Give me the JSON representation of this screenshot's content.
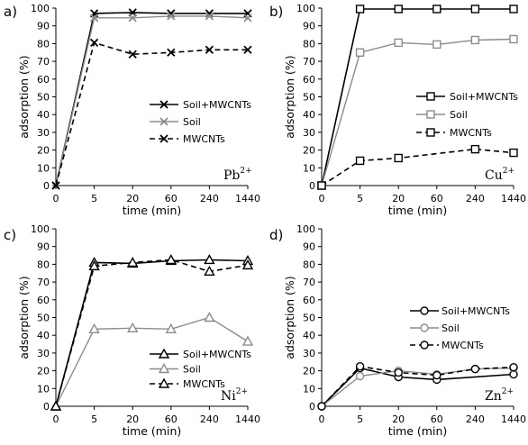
{
  "chart_data": [
    {
      "type": "line",
      "panel_label": "a)",
      "ion": "Pb",
      "ion_charge": "2+",
      "xlabel": "time (min)",
      "ylabel": "adsorption (%)",
      "categories": [
        "0",
        "5",
        "20",
        "60",
        "240",
        "1440"
      ],
      "ylim": [
        0,
        100
      ],
      "yticks": [
        0,
        10,
        20,
        30,
        40,
        50,
        60,
        70,
        80,
        90,
        100
      ],
      "marker": "x",
      "legend_position": "center-right",
      "series": [
        {
          "name": "Soil+MWCNTs",
          "style": "solid",
          "color": "#000000",
          "values": [
            0,
            97,
            97.5,
            97,
            97,
            97
          ]
        },
        {
          "name": "Soil",
          "style": "solid",
          "color": "#8c8c8c",
          "values": [
            0,
            94.5,
            94.5,
            95.5,
            95.5,
            94.5
          ]
        },
        {
          "name": "MWCNTs",
          "style": "dashed",
          "color": "#000000",
          "values": [
            0,
            80.5,
            74,
            75,
            76.5,
            76.5
          ]
        }
      ]
    },
    {
      "type": "line",
      "panel_label": "b)",
      "ion": "Cu",
      "ion_charge": "2+",
      "xlabel": "time (min)",
      "ylabel": "adsorption (%)",
      "categories": [
        "0",
        "5",
        "20",
        "60",
        "240",
        "1440"
      ],
      "ylim": [
        0,
        100
      ],
      "yticks": [
        0,
        10,
        20,
        30,
        40,
        50,
        60,
        70,
        80,
        90,
        100
      ],
      "marker": "square",
      "legend_position": "center-right",
      "series": [
        {
          "name": "Soil+MWCNTs",
          "style": "solid",
          "color": "#000000",
          "values": [
            0,
            99.5,
            99.5,
            99.5,
            99.5,
            99.5
          ]
        },
        {
          "name": "Soil",
          "style": "solid",
          "color": "#8c8c8c",
          "values": [
            0,
            75,
            80.5,
            79.5,
            82,
            82.5
          ]
        },
        {
          "name": "MWCNTs",
          "style": "dashed",
          "color": "#000000",
          "values": [
            0,
            14,
            15.5,
            null,
            20.5,
            18.5
          ]
        }
      ]
    },
    {
      "type": "line",
      "panel_label": "c)",
      "ion": "Ni",
      "ion_charge": "2+",
      "xlabel": "time (min)",
      "ylabel": "adsorption (%)",
      "categories": [
        "0",
        "5",
        "20",
        "60",
        "240",
        "1440"
      ],
      "ylim": [
        0,
        100
      ],
      "yticks": [
        0,
        10,
        20,
        30,
        40,
        50,
        60,
        70,
        80,
        90,
        100
      ],
      "marker": "triangle",
      "legend_position": "bottom-right",
      "series": [
        {
          "name": "Soil+MWCNTs",
          "style": "solid",
          "color": "#000000",
          "values": [
            0,
            81,
            80.5,
            82,
            82.5,
            82
          ]
        },
        {
          "name": "Soil",
          "style": "solid",
          "color": "#8c8c8c",
          "values": [
            0,
            43.5,
            44,
            43.5,
            50,
            36.5
          ]
        },
        {
          "name": "MWCNTs",
          "style": "dashed",
          "color": "#000000",
          "values": [
            0,
            79,
            81,
            82.5,
            76,
            79.5
          ]
        }
      ]
    },
    {
      "type": "line",
      "panel_label": "d)",
      "ion": "Zn",
      "ion_charge": "2+",
      "xlabel": "time (min)",
      "ylabel": "adsorption (%)",
      "categories": [
        "0",
        "5",
        "20",
        "60",
        "240",
        "1440"
      ],
      "ylim": [
        0,
        100
      ],
      "yticks": [
        0,
        10,
        20,
        30,
        40,
        50,
        60,
        70,
        80,
        90,
        100
      ],
      "marker": "circle",
      "legend_position": "center-right",
      "series": [
        {
          "name": "Soil+MWCNTs",
          "style": "solid",
          "color": "#000000",
          "values": [
            0,
            21.5,
            16.5,
            15,
            null,
            18
          ]
        },
        {
          "name": "Soil",
          "style": "solid",
          "color": "#8c8c8c",
          "values": [
            0,
            17,
            20,
            18,
            21,
            21.5
          ]
        },
        {
          "name": "MWCNTs",
          "style": "dashed",
          "color": "#000000",
          "values": [
            0,
            22.5,
            19,
            17.5,
            21,
            22
          ]
        }
      ]
    }
  ]
}
